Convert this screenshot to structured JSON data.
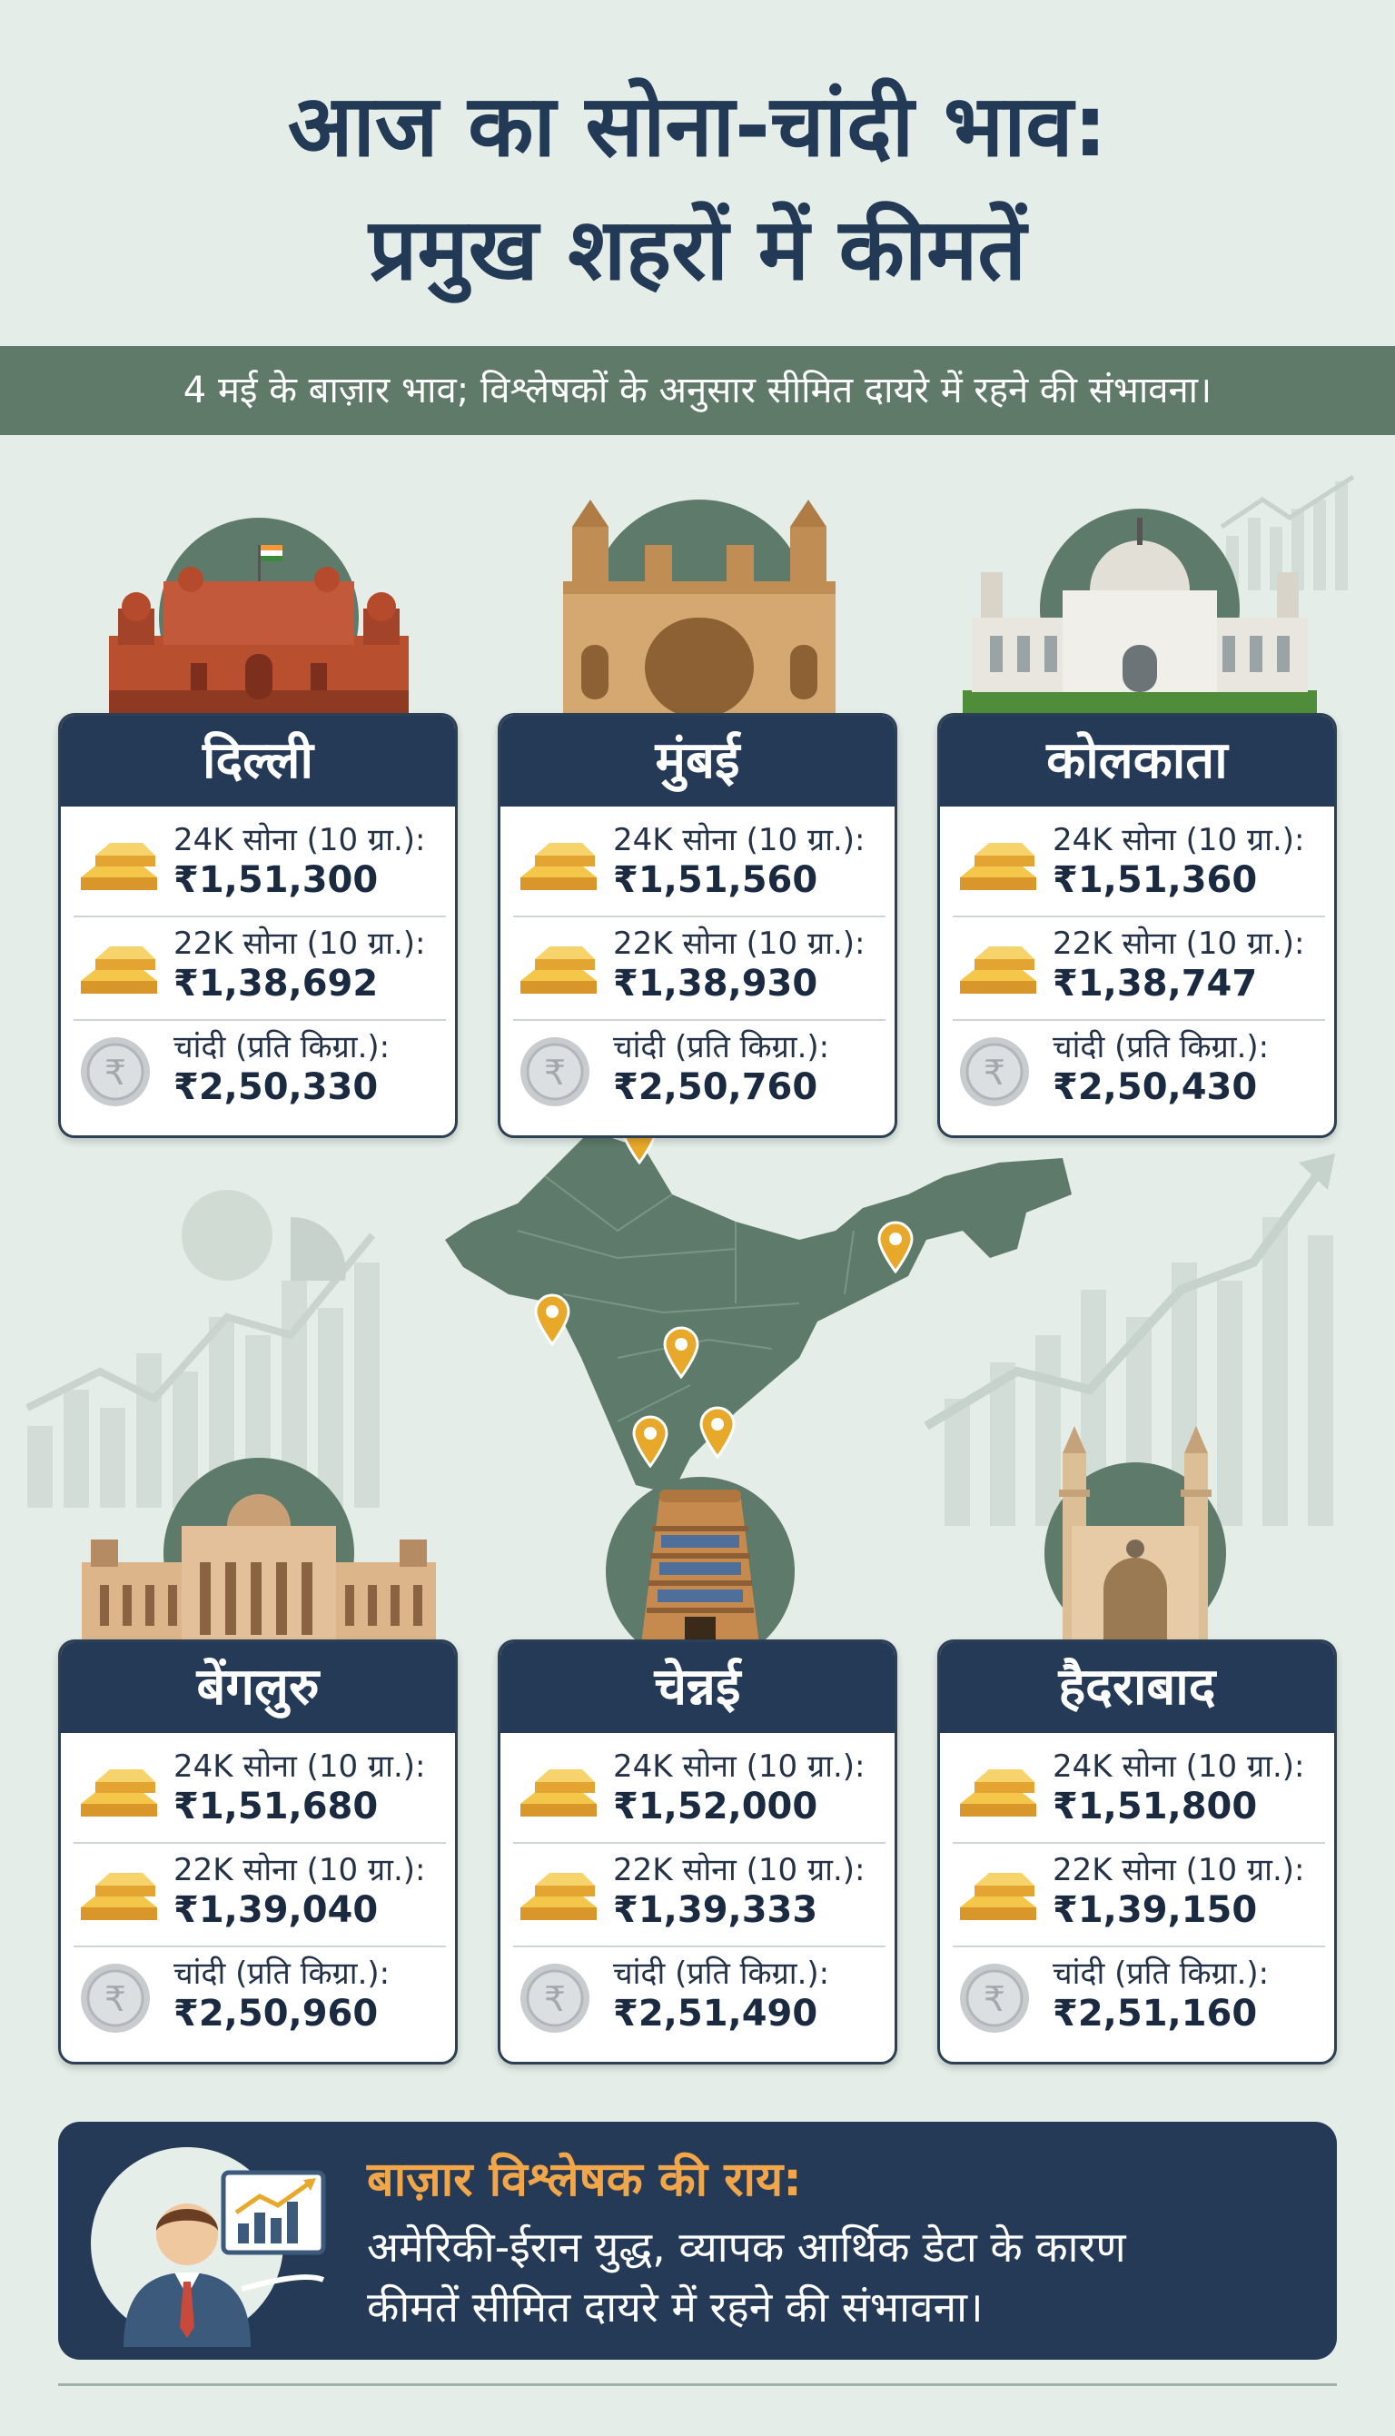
{
  "title": {
    "line1": "आज का सोना-चांदी भाव:",
    "line2": "प्रमुख शहरों में कीमतें"
  },
  "subtitle": "4 मई के बाज़ार भाव; विश्लेषकों के अनुसार सीमित दायरे में रहने की संभावना।",
  "labels": {
    "gold24": "24K सोना (10 ग्रा.):",
    "gold22": "22K सोना (10 ग्रा.):",
    "silver": "चांदी (प्रति किग्रा.):"
  },
  "cities": [
    {
      "name": "दिल्ली",
      "gold24": "₹1,51,300",
      "gold22": "₹1,38,692",
      "silver": "₹2,50,330"
    },
    {
      "name": "मुंबई",
      "gold24": "₹1,51,560",
      "gold22": "₹1,38,930",
      "silver": "₹2,50,760"
    },
    {
      "name": "कोलकाता",
      "gold24": "₹1,51,360",
      "gold22": "₹1,38,747",
      "silver": "₹2,50,430"
    },
    {
      "name": "बेंगलुरु",
      "gold24": "₹1,51,680",
      "gold22": "₹1,39,040",
      "silver": "₹2,50,960"
    },
    {
      "name": "चेन्नई",
      "gold24": "₹1,52,000",
      "gold22": "₹1,39,333",
      "silver": "₹2,51,490"
    },
    {
      "name": "हैदराबाद",
      "gold24": "₹1,51,800",
      "gold22": "₹1,39,150",
      "silver": "₹2,51,160"
    }
  ],
  "analyst": {
    "heading": "बाज़ार विश्लेषक की राय:",
    "line1": "अमेरिकी-ईरान युद्ध, व्यापक आर्थिक डेटा के कारण",
    "line2": "कीमतें सीमित दायरे में रहने की संभावना।"
  },
  "icons": {
    "gold": "gold-bars-icon",
    "silver": "silver-coin-icon",
    "pin": "map-pin-icon"
  },
  "colors": {
    "navy": "#243a56",
    "band": "#5f7a68",
    "accent": "#f2a64a",
    "map": "#5d7a6a",
    "gold": "#e8a92a"
  }
}
